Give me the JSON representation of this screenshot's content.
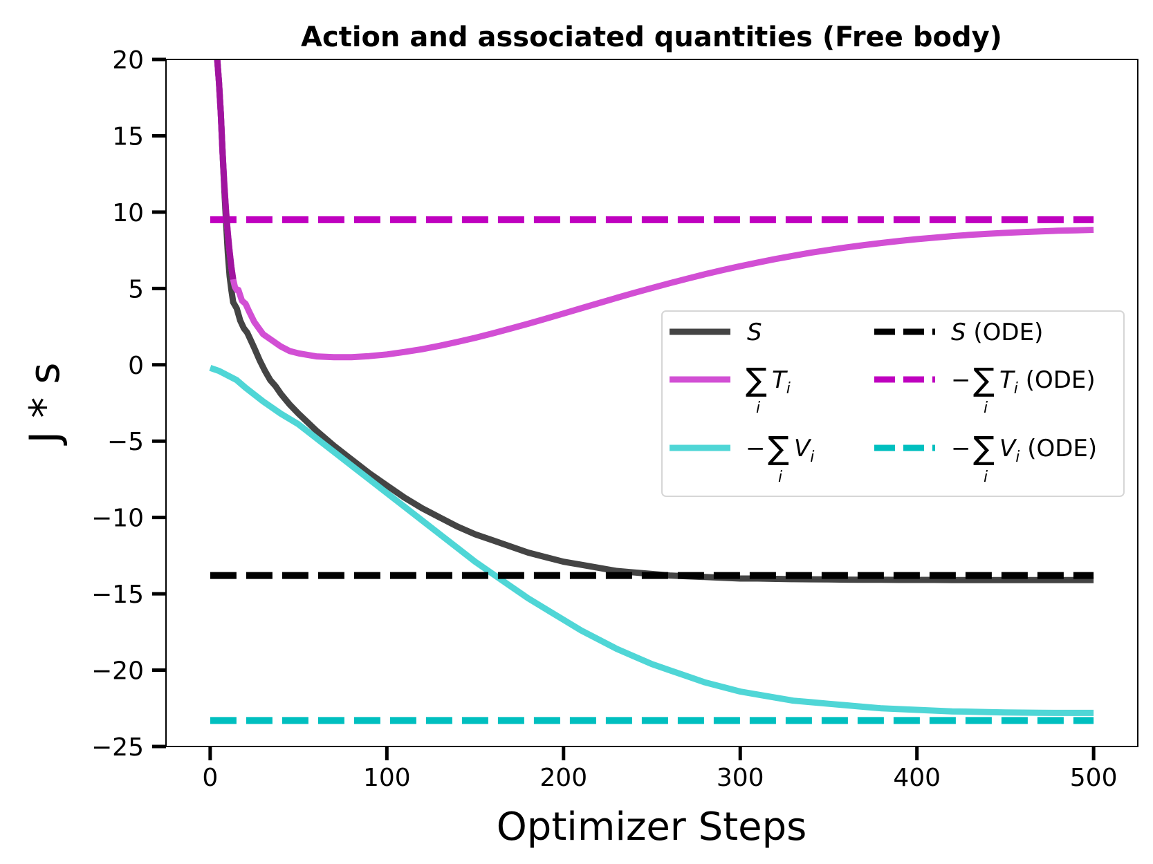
{
  "chart_data": {
    "type": "line",
    "title": "Action and associated quantities (Free body)",
    "xlabel": "Optimizer Steps",
    "ylabel": "J * s",
    "xlim": [
      -25,
      525
    ],
    "ylim": [
      -25,
      20
    ],
    "xticks": [
      0,
      100,
      200,
      300,
      400,
      500
    ],
    "yticks": [
      20,
      15,
      10,
      5,
      0,
      -5,
      -10,
      -15,
      -20,
      -25
    ],
    "xtick_labels": [
      "0",
      "100",
      "200",
      "300",
      "400",
      "500"
    ],
    "ytick_labels": [
      "20",
      "15",
      "10",
      "5",
      "0",
      "−5",
      "−10",
      "−15",
      "−20",
      "−25"
    ],
    "grid": false,
    "legend_position": "center-right",
    "series": [
      {
        "key": "S",
        "name": "S",
        "color": "#444444",
        "style": "solid",
        "x": [
          4,
          5,
          6,
          7,
          8,
          9,
          10,
          11,
          12,
          13,
          15,
          17,
          19,
          21,
          23,
          25,
          28,
          31,
          34,
          37,
          40,
          45,
          50,
          60,
          70,
          80,
          90,
          100,
          110,
          120,
          130,
          140,
          150,
          160,
          170,
          180,
          190,
          200,
          210,
          220,
          230,
          240,
          250,
          260,
          270,
          280,
          290,
          300,
          310,
          320,
          330,
          340,
          350,
          360,
          370,
          380,
          390,
          400,
          410,
          420,
          430,
          440,
          450,
          460,
          470,
          480,
          490,
          500
        ],
        "y": [
          20,
          18.5,
          16.5,
          14,
          11.5,
          9.3,
          7.3,
          5.8,
          4.9,
          4.1,
          3.7,
          2.9,
          2.4,
          2.1,
          1.6,
          1.1,
          0.3,
          -0.4,
          -1.0,
          -1.4,
          -1.9,
          -2.6,
          -3.2,
          -4.3,
          -5.3,
          -6.2,
          -7.1,
          -7.9,
          -8.7,
          -9.4,
          -10.0,
          -10.6,
          -11.1,
          -11.5,
          -11.9,
          -12.3,
          -12.6,
          -12.9,
          -13.1,
          -13.3,
          -13.5,
          -13.6,
          -13.7,
          -13.8,
          -13.85,
          -13.9,
          -13.95,
          -14.0,
          -14.0,
          -14.02,
          -14.04,
          -14.05,
          -14.06,
          -14.07,
          -14.08,
          -14.08,
          -14.09,
          -14.09,
          -14.09,
          -14.1,
          -14.1,
          -14.1,
          -14.1,
          -14.1,
          -14.1,
          -14.1,
          -14.1,
          -14.1
        ]
      },
      {
        "key": "T",
        "name": "∑T",
        "color": "#d24fd4",
        "style": "solid",
        "x": [
          4,
          5,
          6,
          7,
          8,
          9,
          10,
          11,
          12,
          13,
          14,
          15,
          16,
          18,
          20,
          22,
          25,
          30,
          35,
          40,
          45,
          50,
          60,
          70,
          80,
          90,
          100,
          110,
          120,
          130,
          140,
          150,
          160,
          170,
          180,
          190,
          200,
          210,
          220,
          230,
          240,
          250,
          260,
          270,
          280,
          290,
          300,
          310,
          320,
          330,
          340,
          350,
          360,
          370,
          380,
          390,
          400,
          410,
          420,
          430,
          440,
          450,
          460,
          470,
          480,
          490,
          500
        ],
        "y": [
          20,
          18.5,
          16.5,
          14,
          11.8,
          10.0,
          8.6,
          7.4,
          6.4,
          5.6,
          5.1,
          4.9,
          4.9,
          4.2,
          4.0,
          3.5,
          2.8,
          2.0,
          1.6,
          1.2,
          0.9,
          0.75,
          0.55,
          0.5,
          0.5,
          0.57,
          0.68,
          0.84,
          1.02,
          1.25,
          1.5,
          1.77,
          2.06,
          2.37,
          2.69,
          3.02,
          3.36,
          3.7,
          4.04,
          4.38,
          4.71,
          5.03,
          5.34,
          5.64,
          5.93,
          6.2,
          6.46,
          6.7,
          6.93,
          7.14,
          7.34,
          7.52,
          7.69,
          7.84,
          7.98,
          8.11,
          8.23,
          8.33,
          8.43,
          8.51,
          8.58,
          8.64,
          8.69,
          8.74,
          8.78,
          8.81,
          8.84
        ]
      },
      {
        "key": "V",
        "name": "−∑V",
        "color": "#4fd6d6",
        "style": "solid",
        "x": [
          0,
          5,
          10,
          15,
          20,
          30,
          40,
          50,
          60,
          70,
          80,
          90,
          100,
          110,
          120,
          130,
          140,
          150,
          160,
          170,
          180,
          190,
          200,
          210,
          220,
          230,
          240,
          250,
          260,
          270,
          280,
          290,
          300,
          310,
          320,
          330,
          340,
          350,
          360,
          370,
          380,
          390,
          400,
          410,
          420,
          430,
          440,
          450,
          460,
          470,
          480,
          490,
          500
        ],
        "y": [
          -0.2,
          -0.4,
          -0.7,
          -1.0,
          -1.5,
          -2.4,
          -3.2,
          -3.9,
          -4.8,
          -5.7,
          -6.6,
          -7.5,
          -8.4,
          -9.3,
          -10.2,
          -11.1,
          -12.0,
          -12.9,
          -13.7,
          -14.5,
          -15.3,
          -16.0,
          -16.7,
          -17.4,
          -18.0,
          -18.6,
          -19.1,
          -19.6,
          -20.0,
          -20.4,
          -20.8,
          -21.1,
          -21.4,
          -21.6,
          -21.8,
          -22.0,
          -22.1,
          -22.2,
          -22.3,
          -22.4,
          -22.5,
          -22.55,
          -22.6,
          -22.65,
          -22.7,
          -22.72,
          -22.75,
          -22.77,
          -22.78,
          -22.79,
          -22.8,
          -22.8,
          -22.8
        ]
      },
      {
        "key": "S_ode",
        "name": "S (ODE)",
        "color": "#000000",
        "style": "dashed",
        "x": [
          0,
          500
        ],
        "y": [
          -13.8,
          -13.8
        ]
      },
      {
        "key": "T_ode",
        "name": "−∑T (ODE)",
        "color": "#bf00bf",
        "style": "dashed",
        "x": [
          0,
          500
        ],
        "y": [
          9.5,
          9.5
        ]
      },
      {
        "key": "V_ode",
        "name": "−∑V (ODE)",
        "color": "#00bfbf",
        "style": "dashed",
        "x": [
          0,
          500
        ],
        "y": [
          -23.3,
          -23.3
        ]
      }
    ]
  }
}
